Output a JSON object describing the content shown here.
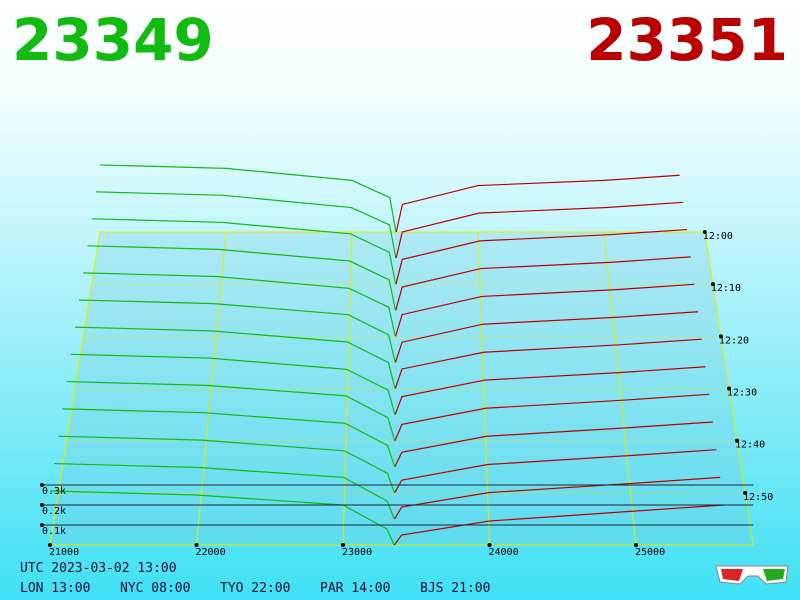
{
  "chart_data": {
    "type": "depth3d",
    "bid_label": "23349",
    "ask_label": "23351",
    "bid_color": "#11bb11",
    "ask_color": "#bb0000",
    "price_lim": [
      21000,
      25800
    ],
    "price_ticks": [
      21000,
      22000,
      23000,
      24000,
      25000
    ],
    "time_lim": [
      "12:00",
      "13:00"
    ],
    "time_ticks": [
      "12:00",
      "12:10",
      "12:20",
      "12:30",
      "12:40",
      "12:50"
    ],
    "depth_ticks": [
      {
        "value": 100,
        "label": "0.1k"
      },
      {
        "value": 200,
        "label": "0.2k"
      },
      {
        "value": 300,
        "label": "0.3k"
      }
    ],
    "bid_prices": [
      21000,
      22000,
      23000,
      23300,
      23349
    ],
    "ask_prices": [
      23351,
      23400,
      24000,
      25000,
      25600
    ],
    "snapshots": [
      {
        "time": "12:00",
        "bid": [
          390,
          370,
          300,
          200,
          0
        ],
        "ask": [
          0,
          160,
          270,
          300,
          330
        ]
      },
      {
        "time": "12:05",
        "bid": [
          380,
          360,
          290,
          190,
          0
        ],
        "ask": [
          0,
          150,
          258,
          290,
          320
        ]
      },
      {
        "time": "12:10",
        "bid": [
          370,
          350,
          285,
          180,
          0
        ],
        "ask": [
          0,
          140,
          245,
          280,
          309
        ]
      },
      {
        "time": "12:15",
        "bid": [
          360,
          340,
          275,
          170,
          0
        ],
        "ask": [
          0,
          130,
          233,
          268,
          298
        ]
      },
      {
        "time": "12:20",
        "bid": [
          350,
          330,
          265,
          160,
          0
        ],
        "ask": [
          0,
          120,
          220,
          257,
          287
        ]
      },
      {
        "time": "12:25",
        "bid": [
          340,
          320,
          260,
          150,
          0
        ],
        "ask": [
          0,
          110,
          208,
          246,
          276
        ]
      },
      {
        "time": "12:30",
        "bid": [
          330,
          310,
          250,
          140,
          0
        ],
        "ask": [
          0,
          105,
          195,
          235,
          265
        ]
      },
      {
        "time": "12:35",
        "bid": [
          320,
          300,
          240,
          130,
          0
        ],
        "ask": [
          0,
          95,
          183,
          224,
          254
        ]
      },
      {
        "time": "12:40",
        "bid": [
          310,
          290,
          235,
          120,
          0
        ],
        "ask": [
          0,
          85,
          170,
          213,
          243
        ]
      },
      {
        "time": "12:45",
        "bid": [
          300,
          280,
          225,
          110,
          0
        ],
        "ask": [
          0,
          75,
          158,
          202,
          232
        ]
      },
      {
        "time": "12:50",
        "bid": [
          290,
          270,
          215,
          100,
          0
        ],
        "ask": [
          0,
          65,
          145,
          191,
          221
        ]
      },
      {
        "time": "12:55",
        "bid": [
          280,
          260,
          210,
          90,
          0
        ],
        "ask": [
          0,
          60,
          133,
          180,
          210
        ]
      },
      {
        "time": "13:00",
        "bid": [
          270,
          250,
          200,
          80,
          0
        ],
        "ask": [
          0,
          50,
          120,
          170,
          200
        ]
      }
    ]
  },
  "footer": {
    "utc": "UTC 2023-03-02 13:00",
    "clocks": [
      "LON 13:00",
      "NYC 08:00",
      "TYO 22:00",
      "PAR 14:00",
      "BJS 21:00"
    ]
  }
}
